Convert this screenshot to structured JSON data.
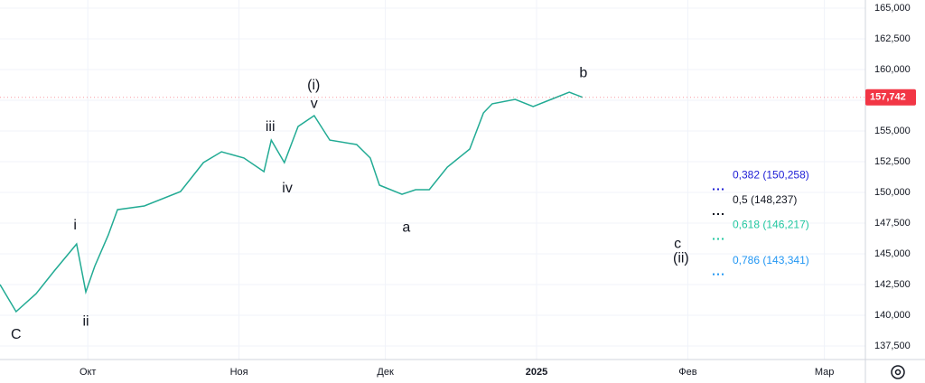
{
  "chart_data": {
    "type": "line",
    "color": "#22ab94",
    "grid": true,
    "x": [
      0,
      3.3,
      7.4,
      11.1,
      15.7,
      17.6,
      19.4,
      22.2,
      24.1,
      29.6,
      37,
      41.7,
      45.4,
      50,
      54.1,
      55.6,
      58.3,
      61.1,
      64.4,
      67.6,
      73.1,
      75.9,
      77.8,
      82.4,
      85.2,
      88,
      91.7,
      96.3,
      99.1,
      100.9,
      105.6,
      109.3,
      113,
      116.7,
      119.4
    ],
    "values": [
      142500,
      140300,
      141760,
      143600,
      145800,
      141900,
      143970,
      146540,
      148600,
      148900,
      150070,
      152430,
      153310,
      152800,
      151690,
      154260,
      152430,
      155370,
      156250,
      154260,
      153900,
      152800,
      150590,
      149850,
      150220,
      150220,
      152060,
      153530,
      156470,
      157210,
      157570,
      156990,
      157570,
      158160,
      157742
    ],
    "last_price": {
      "value": 157742,
      "label": "157,742",
      "color": "#f23645"
    },
    "xlim": [
      0,
      177.4
    ],
    "xticks": [
      {
        "value": 18,
        "label": "Окт"
      },
      {
        "value": 49,
        "label": "Ноя"
      },
      {
        "value": 79,
        "label": "Дек"
      },
      {
        "value": 110,
        "label": "2025"
      },
      {
        "value": 141,
        "label": "Фев"
      },
      {
        "value": 169,
        "label": "Мар"
      }
    ],
    "ylim": [
      136400,
      165660
    ],
    "yticks": [
      {
        "value": 137500,
        "label": "137,500"
      },
      {
        "value": 140000,
        "label": "140,000"
      },
      {
        "value": 142500,
        "label": "142,500"
      },
      {
        "value": 145000,
        "label": "145,000"
      },
      {
        "value": 147500,
        "label": "147,500"
      },
      {
        "value": 150000,
        "label": "150,000"
      },
      {
        "value": 152500,
        "label": "152,500"
      },
      {
        "value": 155000,
        "label": "155,000"
      },
      {
        "value": 157500,
        "label": "157,500"
      },
      {
        "value": 160000,
        "label": "160,000"
      },
      {
        "value": 162500,
        "label": "162,500"
      },
      {
        "value": 165000,
        "label": "165,000"
      }
    ],
    "annotations": [
      {
        "text": "C",
        "x": 3.3,
        "y": 138400
      },
      {
        "text": "i",
        "x": 15.4,
        "y": 147300
      },
      {
        "text": "ii",
        "x": 17.6,
        "y": 139450
      },
      {
        "text": "iii",
        "x": 55.4,
        "y": 155300
      },
      {
        "text": "iv",
        "x": 58.9,
        "y": 150300
      },
      {
        "text": "v",
        "x": 64.4,
        "y": 157200
      },
      {
        "text": "(i)",
        "x": 64.3,
        "y": 158700
      },
      {
        "text": "a",
        "x": 83.3,
        "y": 147100
      },
      {
        "text": "b",
        "x": 119.6,
        "y": 159700
      },
      {
        "text": "c",
        "x": 138.9,
        "y": 145800
      },
      {
        "text": "(ii)",
        "x": 139.6,
        "y": 144600
      }
    ],
    "fib_levels": [
      {
        "value": 150258,
        "label": "0,382 (150,258)",
        "color": "#1e1ed6"
      },
      {
        "value": 148237,
        "label": "0,5 (148,237)",
        "color": "#131722"
      },
      {
        "value": 146217,
        "label": "0,618 (146,217)",
        "color": "#22c7a0"
      },
      {
        "value": 143341,
        "label": "0,786 (143,341)",
        "color": "#2196f3"
      }
    ]
  }
}
